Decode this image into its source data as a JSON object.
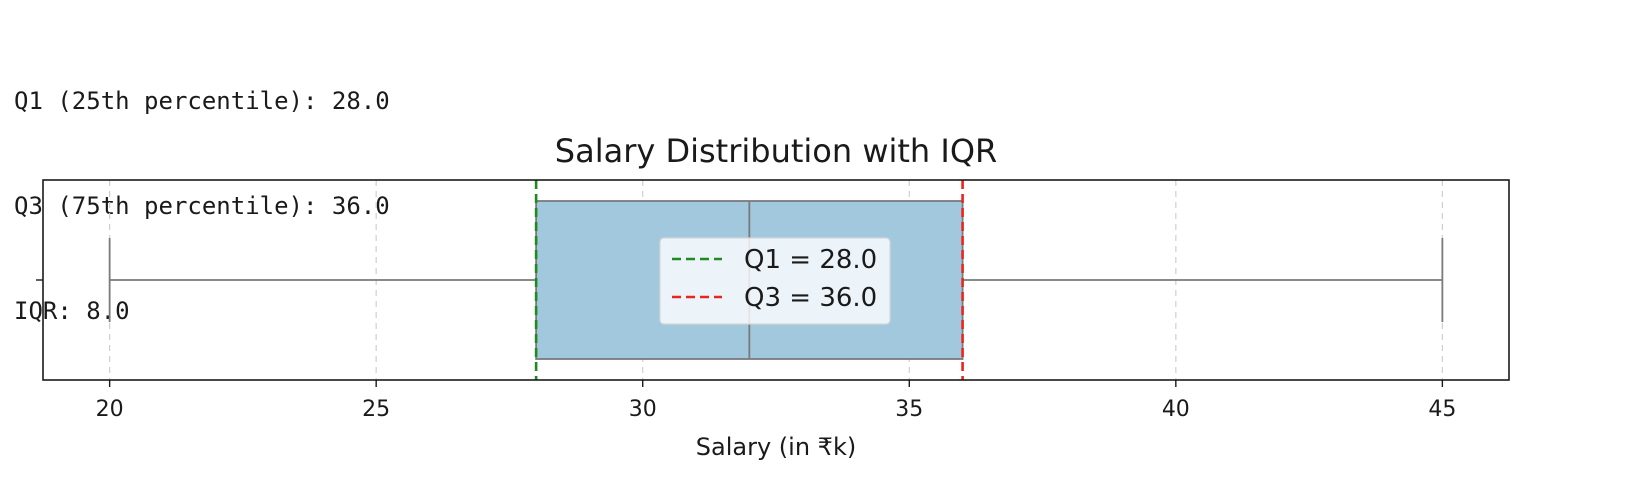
{
  "console_output": [
    "Q1 (25th percentile): 28.0",
    "Q3 (75th percentile): 36.0",
    "IQR: 8.0"
  ],
  "chart_data": {
    "type": "box",
    "title": "Salary Distribution with IQR",
    "xlabel": "Salary (in ₹k)",
    "ylabel": "",
    "xlim": [
      18.75,
      46.25
    ],
    "xticks": [
      20,
      25,
      30,
      35,
      40,
      45
    ],
    "grid": "x, dashed",
    "legend_placement": "center",
    "box": {
      "whisker_low": 20,
      "q1": 28,
      "median": 32,
      "q3": 36,
      "whisker_high": 45,
      "color": "#a2c8de",
      "edge_color": "#7a7a7a"
    },
    "reference_lines": [
      {
        "label": "Q1 = 28.0",
        "x": 28.0,
        "color": "#1f8a1f",
        "style": "dashed"
      },
      {
        "label": "Q3 = 36.0",
        "x": 36.0,
        "color": "#e8261e",
        "style": "dashed"
      }
    ]
  }
}
